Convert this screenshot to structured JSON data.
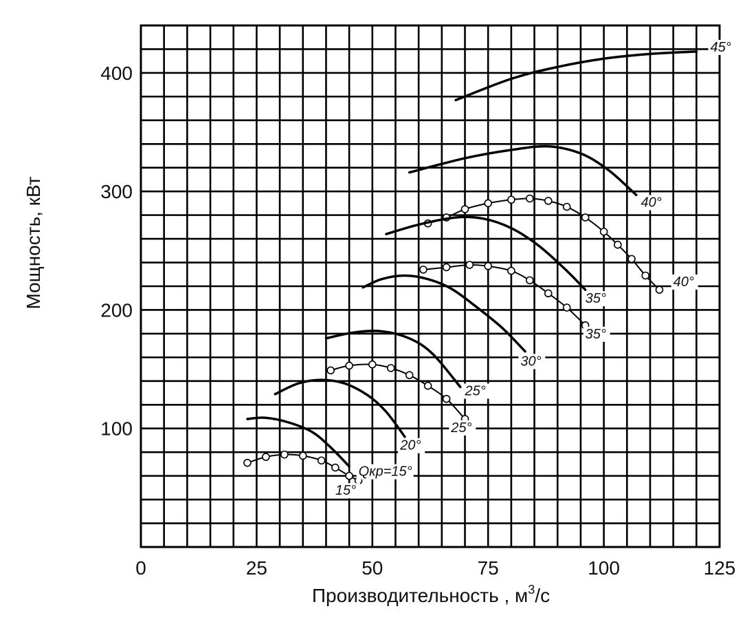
{
  "chart_data": {
    "type": "line",
    "title": "",
    "xlabel": "Производительность  , м",
    "xlabel_sup": "3",
    "xlabel_suffix": "/с",
    "ylabel": "Мощность, кВт",
    "xlim": [
      0,
      125
    ],
    "ylim": [
      0,
      440
    ],
    "x_ticks": [
      0,
      25,
      50,
      75,
      100,
      125
    ],
    "y_ticks": [
      100,
      200,
      300,
      400
    ],
    "grid": true,
    "series": [
      {
        "name": "45°",
        "style": "solid",
        "points": [
          [
            68,
            377
          ],
          [
            80,
            395
          ],
          [
            90,
            405
          ],
          [
            100,
            412
          ],
          [
            110,
            416
          ],
          [
            120,
            418
          ]
        ]
      },
      {
        "name": "40°",
        "style": "solid",
        "points": [
          [
            58,
            316
          ],
          [
            70,
            328
          ],
          [
            80,
            335
          ],
          [
            88,
            338
          ],
          [
            95,
            332
          ],
          [
            101,
            318
          ],
          [
            107,
            297
          ]
        ]
      },
      {
        "name": "40°",
        "style": "dots",
        "points": [
          [
            62,
            273
          ],
          [
            66,
            278
          ],
          [
            70,
            285
          ],
          [
            75,
            290
          ],
          [
            80,
            293
          ],
          [
            84,
            294
          ],
          [
            88,
            292
          ],
          [
            92,
            287
          ],
          [
            96,
            278
          ],
          [
            100,
            266
          ],
          [
            103,
            255
          ],
          [
            106,
            243
          ],
          [
            109,
            229
          ],
          [
            112,
            217
          ]
        ]
      },
      {
        "name": "35°",
        "style": "solid",
        "points": [
          [
            53,
            264
          ],
          [
            60,
            272
          ],
          [
            68,
            278
          ],
          [
            74,
            277
          ],
          [
            80,
            269
          ],
          [
            86,
            254
          ],
          [
            92,
            233
          ],
          [
            96,
            217
          ]
        ]
      },
      {
        "name": "35°",
        "style": "dots",
        "points": [
          [
            61,
            234
          ],
          [
            66,
            236
          ],
          [
            71,
            238
          ],
          [
            75,
            237
          ],
          [
            80,
            233
          ],
          [
            84,
            225
          ],
          [
            88,
            214
          ],
          [
            92,
            202
          ],
          [
            96,
            187
          ]
        ]
      },
      {
        "name": "30°",
        "style": "solid",
        "points": [
          [
            48,
            219
          ],
          [
            52,
            226
          ],
          [
            57,
            229
          ],
          [
            62,
            226
          ],
          [
            67,
            218
          ],
          [
            72,
            204
          ],
          [
            78,
            185
          ],
          [
            83,
            165
          ]
        ]
      },
      {
        "name": "25°",
        "style": "solid",
        "points": [
          [
            40,
            176
          ],
          [
            46,
            181
          ],
          [
            52,
            182
          ],
          [
            58,
            176
          ],
          [
            63,
            163
          ],
          [
            69,
            135
          ]
        ]
      },
      {
        "name": "25°",
        "style": "dots",
        "points": [
          [
            41,
            149
          ],
          [
            45,
            153
          ],
          [
            50,
            154
          ],
          [
            54,
            151
          ],
          [
            58,
            145
          ],
          [
            62,
            136
          ],
          [
            66,
            125
          ],
          [
            70,
            108
          ]
        ]
      },
      {
        "name": "20°",
        "style": "solid",
        "points": [
          [
            29,
            129
          ],
          [
            34,
            138
          ],
          [
            39,
            141
          ],
          [
            44,
            138
          ],
          [
            49,
            128
          ],
          [
            53,
            114
          ],
          [
            57,
            93
          ]
        ]
      },
      {
        "name": "15°",
        "style": "solid",
        "points": [
          [
            23,
            108
          ],
          [
            27,
            109
          ],
          [
            32,
            105
          ],
          [
            37,
            97
          ],
          [
            41,
            84
          ],
          [
            45,
            68
          ]
        ]
      },
      {
        "name": "15°",
        "style": "dots",
        "points": [
          [
            23,
            71
          ],
          [
            27,
            76
          ],
          [
            31,
            78
          ],
          [
            35,
            77
          ],
          [
            39,
            73
          ],
          [
            42,
            67
          ],
          [
            45,
            60
          ],
          [
            47,
            56
          ]
        ]
      }
    ],
    "labels": [
      {
        "text": "45°",
        "x": 123,
        "y": 418
      },
      {
        "text": "40°",
        "x": 108,
        "y": 287
      },
      {
        "text": "40°",
        "x": 115,
        "y": 220
      },
      {
        "text": "35°",
        "x": 96,
        "y": 206
      },
      {
        "text": "35°",
        "x": 96,
        "y": 176
      },
      {
        "text": "30°",
        "x": 82,
        "y": 153
      },
      {
        "text": "25°",
        "x": 70,
        "y": 128
      },
      {
        "text": "25°",
        "x": 67,
        "y": 97
      },
      {
        "text": "20°",
        "x": 56,
        "y": 82
      },
      {
        "text": "Qкр=15°",
        "x": 47,
        "y": 60
      },
      {
        "text": "15°",
        "x": 42,
        "y": 44
      }
    ]
  }
}
